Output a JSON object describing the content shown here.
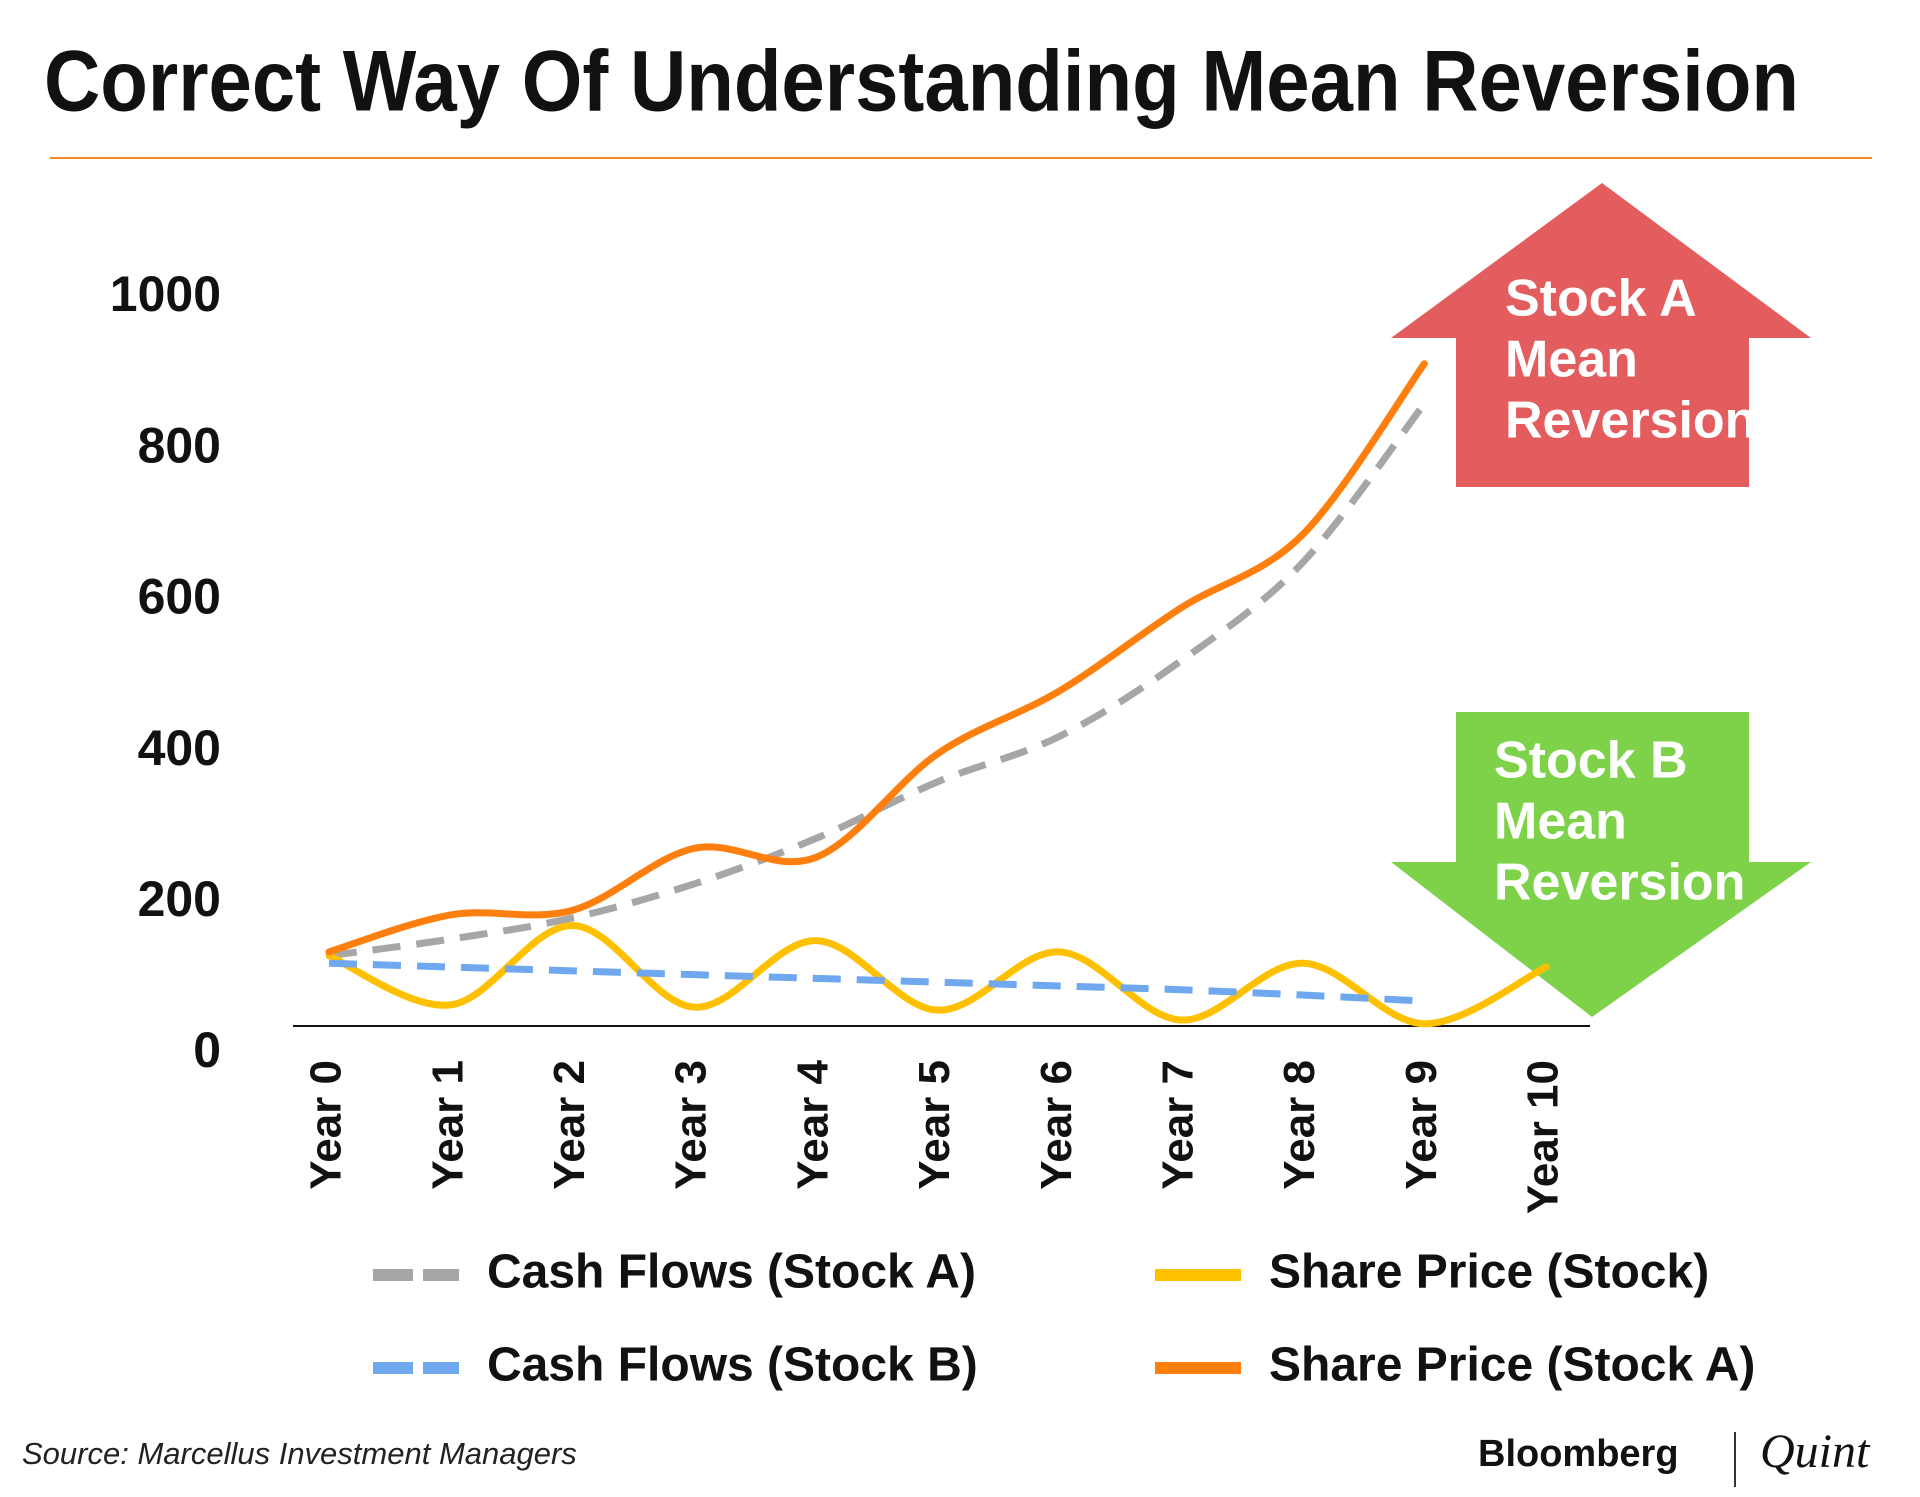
{
  "chart_data": {
    "type": "line",
    "title": "Correct Way Of Understanding Mean Reversion",
    "categories": [
      "Year 0",
      "Year 1",
      "Year 2",
      "Year 3",
      "Year 4",
      "Year 5",
      "Year 6",
      "Year 7",
      "Year 8",
      "Year 9",
      "Year 10"
    ],
    "series": [
      {
        "name": "Cash Flows (Stock A)",
        "color": "#a6a6a6",
        "dashed": true,
        "values": [
          130,
          152,
          180,
          225,
          285,
          360,
          420,
          520,
          650,
          860,
          null
        ]
      },
      {
        "name": "Share Price (Stock)",
        "color": "#ffc000",
        "dashed": false,
        "values": [
          130,
          65,
          170,
          62,
          150,
          58,
          135,
          45,
          120,
          40,
          115
        ]
      },
      {
        "name": "Cash Flows (Stock B)",
        "color": "#6fa8ef",
        "dashed": true,
        "values": [
          120,
          115,
          110,
          105,
          100,
          95,
          90,
          85,
          78,
          70,
          null
        ]
      },
      {
        "name": "Share Price (Stock A)",
        "color": "#ff7f0e",
        "dashed": false,
        "values": [
          135,
          184,
          190,
          272,
          260,
          397,
          480,
          590,
          687,
          913,
          null
        ]
      }
    ],
    "ylim": [
      0,
      1000
    ],
    "yticks": [
      0,
      200,
      400,
      600,
      800,
      1000
    ],
    "annotations": [
      [
        "Stock A",
        "Mean",
        "Reversion"
      ],
      [
        "Stock B",
        "Mean",
        "Reversion"
      ]
    ],
    "source": "Source: Marcellus Investment Managers",
    "logo": [
      "Bloomberg",
      "Quint"
    ]
  }
}
